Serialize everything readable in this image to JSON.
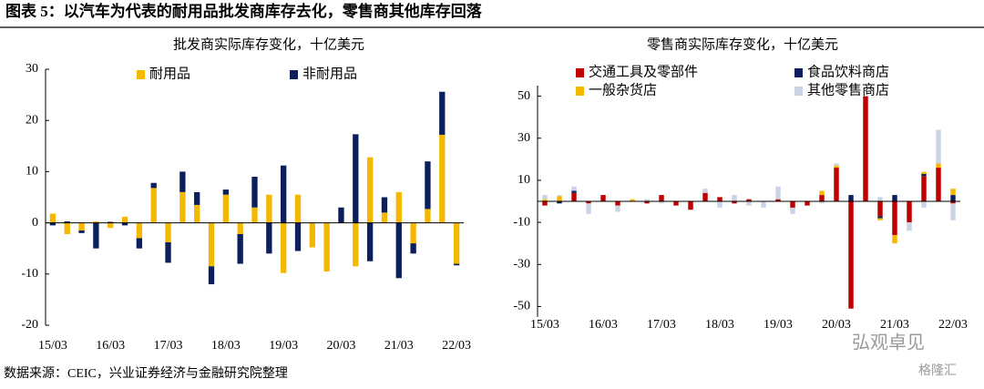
{
  "header": {
    "title": "图表 5：以汽车为代表的耐用品批发商库存去化，零售商其他库存回落"
  },
  "source": "数据来源：CEIC，兴业证券经济与金融研究院整理",
  "watermark": [
    "弘观卓见",
    "格隆汇"
  ],
  "chart_data": [
    {
      "type": "bar",
      "stacked": true,
      "title": "批发商实际库存变化，十亿美元",
      "categories": [
        "15/03",
        null,
        null,
        null,
        "16/03",
        null,
        null,
        null,
        "17/03",
        null,
        null,
        null,
        "18/03",
        null,
        null,
        null,
        "19/03",
        null,
        null,
        null,
        "20/03",
        null,
        null,
        null,
        "21/03",
        null,
        null,
        null,
        "22/03"
      ],
      "series": [
        {
          "name": "耐用品",
          "color": "#f5b800",
          "values": [
            1.8,
            -2.2,
            -1.5,
            0.3,
            -1,
            1.2,
            -3,
            6.8,
            -3.8,
            6,
            3.5,
            -8.5,
            5.5,
            -2.2,
            3,
            5.5,
            -9.8,
            5.5,
            -4.8,
            -9.5,
            0,
            -8.5,
            12.8,
            2,
            6,
            -4,
            2.7,
            17.2,
            -8
          ]
        },
        {
          "name": "非耐用品",
          "color": "#0b1f5c",
          "values": [
            -0.5,
            0.3,
            -0.5,
            -5,
            0.2,
            -0.5,
            -2,
            1,
            -4,
            4,
            2.5,
            -3.5,
            1,
            -5.8,
            6,
            -6,
            11.2,
            -5.5,
            0,
            0,
            3,
            17.3,
            -7.5,
            3,
            -10.8,
            -2,
            9.3,
            8.4,
            -0.3
          ]
        }
      ],
      "ylim": [
        -20,
        30
      ],
      "yticks": [
        -20,
        -10,
        0,
        10,
        20,
        30
      ],
      "legend": "top"
    },
    {
      "type": "bar",
      "stacked": true,
      "title": "零售商实际库存变化，十亿美元",
      "categories": [
        "15/03",
        null,
        null,
        null,
        "16/03",
        null,
        null,
        null,
        "17/03",
        null,
        null,
        null,
        "18/03",
        null,
        null,
        null,
        "19/03",
        null,
        null,
        null,
        "20/03",
        null,
        null,
        null,
        "21/03",
        null,
        null,
        null,
        "22/03"
      ],
      "series": [
        {
          "name": "交通工具及零部件",
          "color": "#c00000",
          "values": [
            -2,
            0,
            4,
            -1,
            3,
            -2,
            0,
            -1,
            3,
            -2,
            -4,
            4,
            2,
            -1,
            1,
            0,
            1,
            -3,
            -2,
            3,
            16,
            -51,
            50,
            -7,
            -16,
            -10,
            12,
            16,
            -1
          ]
        },
        {
          "name": "食品饮料商店",
          "color": "#0b1f5c",
          "values": [
            0,
            -1,
            1,
            0,
            0,
            0,
            0,
            0,
            0,
            0,
            0,
            0,
            0,
            0,
            0,
            0,
            0,
            0,
            0,
            0,
            0,
            3,
            0,
            -1,
            3,
            0,
            1,
            0,
            3
          ]
        },
        {
          "name": "一般杂货店",
          "color": "#f5b800",
          "values": [
            1,
            2.5,
            0,
            0,
            0,
            0,
            1,
            0,
            0,
            0,
            0,
            0,
            0,
            0,
            0,
            0,
            0,
            0,
            0,
            2,
            1,
            0,
            0,
            -1,
            -4,
            0,
            1,
            2,
            3
          ]
        },
        {
          "name": "其他零售商店",
          "color": "#c9d3e6",
          "values": [
            2,
            0.5,
            2,
            -5,
            0,
            -3,
            0,
            1,
            -1,
            0,
            0,
            2,
            -3,
            3,
            -2,
            -3,
            6,
            -3,
            0,
            -1,
            1,
            0,
            0,
            2,
            0,
            -4,
            -3,
            16,
            -8
          ]
        }
      ],
      "ylim": [
        -55,
        55
      ],
      "yticks": [
        -50,
        -30,
        -10,
        10,
        30,
        50
      ],
      "legend": "top"
    }
  ]
}
